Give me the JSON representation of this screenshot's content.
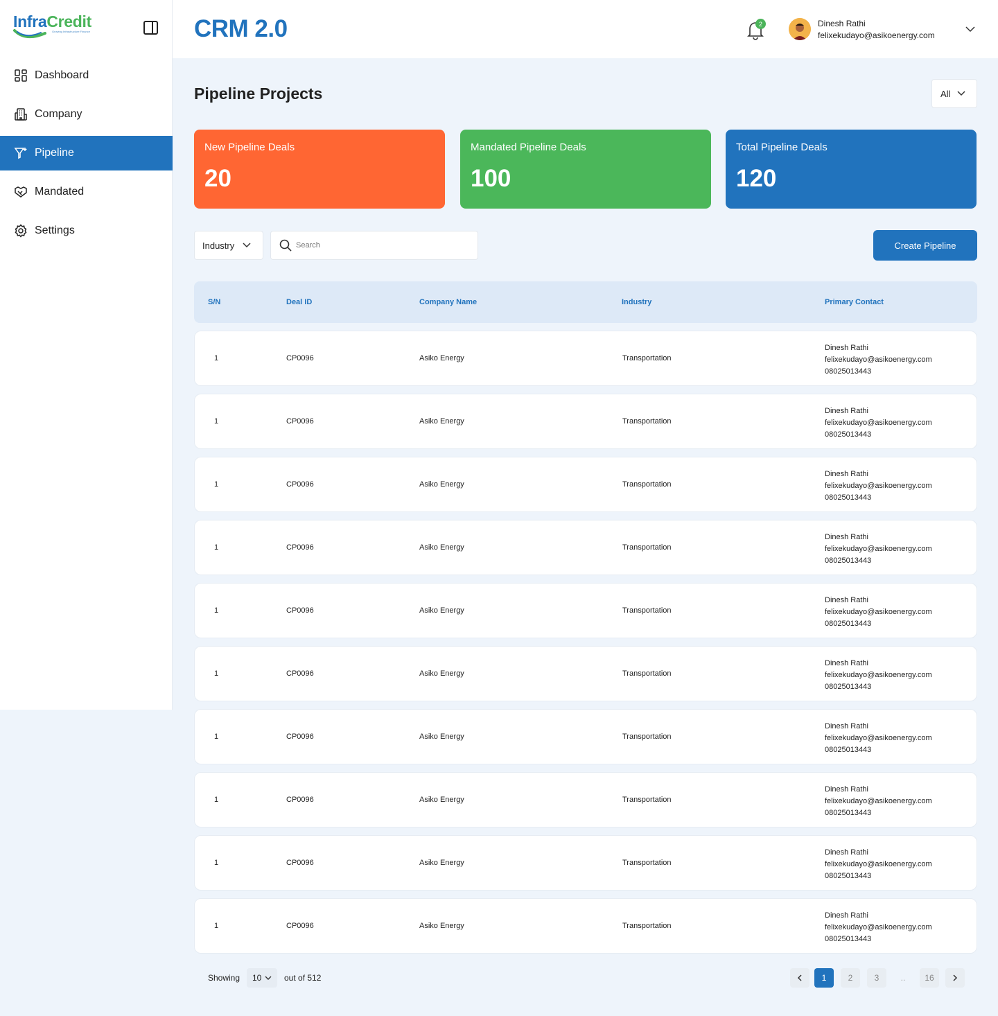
{
  "brand": {
    "logo_primary": "Infra",
    "logo_secondary": "Credit",
    "logo_tagline": "Growing Infrastructure Finance"
  },
  "app_title": "CRM 2.0",
  "sidebar": {
    "items": [
      {
        "label": "Dashboard",
        "icon": "dashboard-icon"
      },
      {
        "label": "Company",
        "icon": "building-icon"
      },
      {
        "label": "Pipeline",
        "icon": "filter-icon",
        "active": true
      },
      {
        "label": "Mandated",
        "icon": "handshake-icon"
      },
      {
        "label": "Settings",
        "icon": "gear-icon"
      }
    ]
  },
  "header": {
    "notification_count": "2",
    "user_name": "Dinesh Rathi",
    "user_email": "felixekudayo@asikoenergy.com"
  },
  "page": {
    "title": "Pipeline Projects",
    "period_filter": "All"
  },
  "stats": [
    {
      "label": "New Pipeline Deals",
      "value": "20",
      "color": "#ff6633"
    },
    {
      "label": "Mandated Pipeline Deals",
      "value": "100",
      "color": "#4bb75a"
    },
    {
      "label": "Total Pipeline Deals",
      "value": "120",
      "color": "#2173bd"
    }
  ],
  "filters": {
    "industry_label": "Industry",
    "search_placeholder": "Search",
    "create_label": "Create Pipeline"
  },
  "table": {
    "columns": [
      "S/N",
      "Deal ID",
      "Company Name",
      "Industry",
      "Primary Contact"
    ],
    "rows": [
      {
        "sn": "1",
        "deal_id": "CP0096",
        "company": "Asiko Energy",
        "industry": "Transportation",
        "contact_name": "Dinesh Rathi",
        "contact_email": "felixekudayo@asikoenergy.com",
        "contact_phone": "08025013443"
      },
      {
        "sn": "1",
        "deal_id": "CP0096",
        "company": "Asiko Energy",
        "industry": "Transportation",
        "contact_name": "Dinesh Rathi",
        "contact_email": "felixekudayo@asikoenergy.com",
        "contact_phone": "08025013443"
      },
      {
        "sn": "1",
        "deal_id": "CP0096",
        "company": "Asiko Energy",
        "industry": "Transportation",
        "contact_name": "Dinesh Rathi",
        "contact_email": "felixekudayo@asikoenergy.com",
        "contact_phone": "08025013443"
      },
      {
        "sn": "1",
        "deal_id": "CP0096",
        "company": "Asiko Energy",
        "industry": "Transportation",
        "contact_name": "Dinesh Rathi",
        "contact_email": "felixekudayo@asikoenergy.com",
        "contact_phone": "08025013443"
      },
      {
        "sn": "1",
        "deal_id": "CP0096",
        "company": "Asiko Energy",
        "industry": "Transportation",
        "contact_name": "Dinesh Rathi",
        "contact_email": "felixekudayo@asikoenergy.com",
        "contact_phone": "08025013443"
      },
      {
        "sn": "1",
        "deal_id": "CP0096",
        "company": "Asiko Energy",
        "industry": "Transportation",
        "contact_name": "Dinesh Rathi",
        "contact_email": "felixekudayo@asikoenergy.com",
        "contact_phone": "08025013443"
      },
      {
        "sn": "1",
        "deal_id": "CP0096",
        "company": "Asiko Energy",
        "industry": "Transportation",
        "contact_name": "Dinesh Rathi",
        "contact_email": "felixekudayo@asikoenergy.com",
        "contact_phone": "08025013443"
      },
      {
        "sn": "1",
        "deal_id": "CP0096",
        "company": "Asiko Energy",
        "industry": "Transportation",
        "contact_name": "Dinesh Rathi",
        "contact_email": "felixekudayo@asikoenergy.com",
        "contact_phone": "08025013443"
      },
      {
        "sn": "1",
        "deal_id": "CP0096",
        "company": "Asiko Energy",
        "industry": "Transportation",
        "contact_name": "Dinesh Rathi",
        "contact_email": "felixekudayo@asikoenergy.com",
        "contact_phone": "08025013443"
      },
      {
        "sn": "1",
        "deal_id": "CP0096",
        "company": "Asiko Energy",
        "industry": "Transportation",
        "contact_name": "Dinesh Rathi",
        "contact_email": "felixekudayo@asikoenergy.com",
        "contact_phone": "08025013443"
      }
    ]
  },
  "pagination": {
    "showing_label": "Showing",
    "per_page": "10",
    "out_of_label": "out of 512",
    "pages": [
      "1",
      "2",
      "3",
      "..",
      "16"
    ],
    "active_page": "1"
  }
}
